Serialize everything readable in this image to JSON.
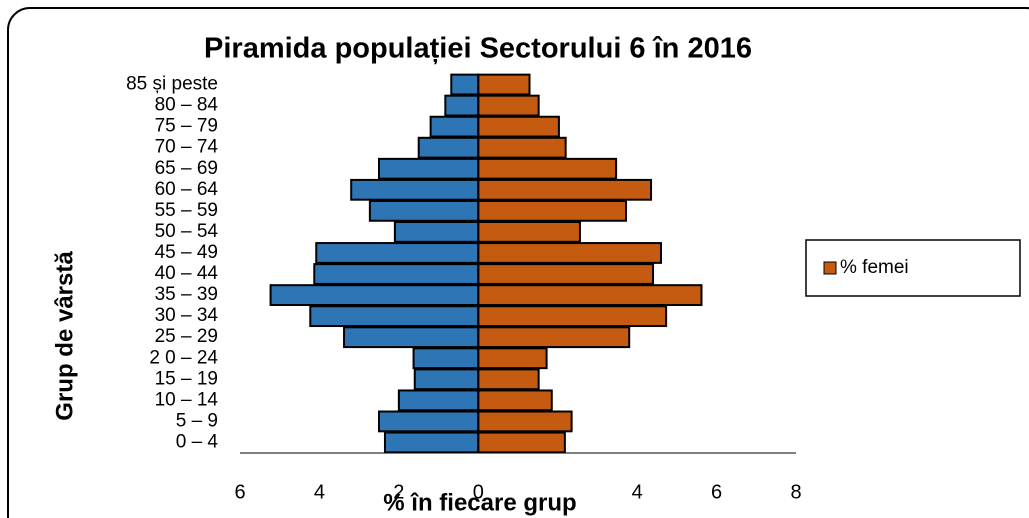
{
  "chart_data": {
    "type": "bar",
    "orientation": "horizontal",
    "title": "Piramida populației Sectorului 6 în 2016",
    "x_label": "% în fiecare grup",
    "y_label": "Grup de vârstă",
    "categories": [
      "0 – 4",
      "5 – 9",
      "10 – 14",
      "15 – 19",
      "2 0 – 24",
      "25 – 29",
      "30 – 34",
      "35 – 39",
      "40 – 44",
      "45 – 49",
      "50 – 54",
      "55 – 59",
      "60 – 64",
      "65 – 69",
      "70 – 74",
      "75 – 79",
      "80 – 84",
      "85 și peste"
    ],
    "series": [
      {
        "color": "#2e75b6",
        "values": [
          -2.35,
          -2.5,
          -2.0,
          -1.6,
          -1.63,
          -3.38,
          -4.23,
          -5.23,
          -4.13,
          -4.08,
          -2.1,
          -2.73,
          -3.2,
          -2.5,
          -1.5,
          -1.2,
          -0.83,
          -0.68
        ]
      },
      {
        "name": "% femei",
        "color": "#c55a11",
        "values": [
          2.18,
          2.35,
          1.85,
          1.52,
          1.72,
          3.8,
          4.73,
          5.62,
          4.4,
          4.6,
          2.56,
          3.72,
          4.35,
          3.47,
          2.2,
          2.03,
          1.52,
          1.29
        ]
      }
    ],
    "xlim": [
      -6,
      8
    ],
    "xticks": [
      {
        "value": -6,
        "label": "6"
      },
      {
        "value": -4,
        "label": "4"
      },
      {
        "value": -2,
        "label": "2"
      },
      0,
      4,
      6,
      8
    ],
    "legend": "right"
  }
}
